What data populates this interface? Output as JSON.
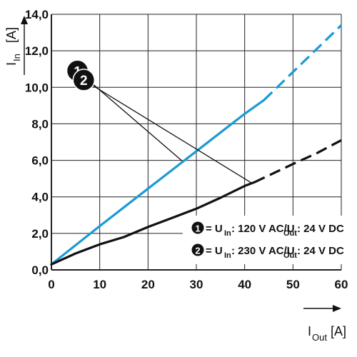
{
  "chart_data": {
    "type": "line",
    "x_axis": {
      "label": "I",
      "label_sub": "Out",
      "unit": "[A]",
      "min": 0,
      "max": 60,
      "ticks": [
        "0",
        "10",
        "20",
        "30",
        "40",
        "50",
        "60"
      ]
    },
    "y_axis": {
      "label": "I",
      "label_sub": "In",
      "unit": "[A]",
      "min": 0,
      "max": 14,
      "ticks": [
        "0,0",
        "2,0",
        "4,0",
        "6,0",
        "8,0",
        "10,0",
        "12,0",
        "14,0"
      ]
    },
    "grid": true,
    "series": [
      {
        "id": "1",
        "color": "#1a9ad6",
        "solid": [
          [
            0,
            0.3
          ],
          [
            10,
            2.4
          ],
          [
            20,
            4.45
          ],
          [
            30,
            6.5
          ],
          [
            40,
            8.55
          ],
          [
            44,
            9.3
          ]
        ],
        "dashed": [
          [
            44,
            9.3
          ],
          [
            60,
            13.4
          ]
        ],
        "annotation": {
          "badge_value": [
            5.4,
            10.9
          ],
          "pointer_value": [
            27,
            5.98
          ]
        }
      },
      {
        "id": "2",
        "color": "#111111",
        "solid": [
          [
            0,
            0.3
          ],
          [
            5,
            0.9
          ],
          [
            10,
            1.4
          ],
          [
            15,
            1.8
          ],
          [
            20,
            2.35
          ],
          [
            25,
            2.85
          ],
          [
            30,
            3.35
          ],
          [
            35,
            3.95
          ],
          [
            40,
            4.6
          ],
          [
            42,
            4.8
          ]
        ],
        "dashed": [
          [
            42,
            4.8
          ],
          [
            50,
            5.8
          ],
          [
            55,
            6.4
          ],
          [
            60,
            7.1
          ]
        ],
        "annotation": {
          "badge_value": [
            6.7,
            10.4
          ],
          "pointer_value": [
            41.5,
            4.75
          ]
        }
      }
    ],
    "legend": {
      "position": "bottom-right",
      "entries": [
        {
          "badge": "1",
          "pre": "= U",
          "sub1": "In",
          "mid": ": 120 V AC/U",
          "sub2": "Out",
          "post": ": 24 V DC"
        },
        {
          "badge": "2",
          "pre": "= U",
          "sub1": "In",
          "mid": ": 230 V AC/U",
          "sub2": "Out",
          "post": ": 24 V DC"
        }
      ]
    }
  }
}
